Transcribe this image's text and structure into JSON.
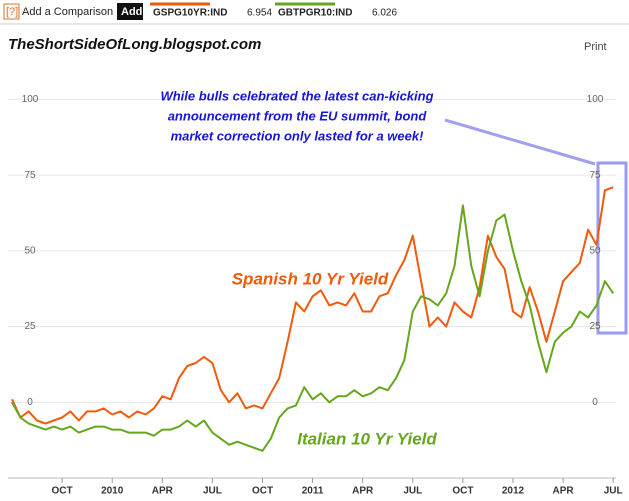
{
  "toolbar": {
    "help": "[?]",
    "compare": "Add a Comparison",
    "add": "Add"
  },
  "print": "Print",
  "chart_data": {
    "type": "line",
    "watermark": "TheShortSideOfLong.blogspot.com",
    "annotation": [
      "While bulls celebrated the latest can-kicking",
      "announcement from the EU summit, bond",
      "market correction only lasted for a week!"
    ],
    "categories": [
      null,
      null,
      null,
      null,
      null,
      null,
      "OCT",
      null,
      null,
      null,
      null,
      null,
      "2010",
      null,
      null,
      null,
      null,
      null,
      "APR",
      null,
      null,
      null,
      null,
      null,
      "JUL",
      null,
      null,
      null,
      null,
      null,
      "OCT",
      null,
      null,
      null,
      null,
      null,
      "2011",
      null,
      null,
      null,
      null,
      null,
      "APR",
      null,
      null,
      null,
      null,
      null,
      "JUL",
      null,
      null,
      null,
      null,
      null,
      "OCT",
      null,
      null,
      null,
      null,
      null,
      "2012",
      null,
      null,
      null,
      null,
      null,
      "APR",
      null,
      null,
      null,
      null,
      null,
      "JUL"
    ],
    "series": [
      {
        "name": "GSPG10YR:IND",
        "legend_value": "6.954",
        "label": "Spanish 10 Yr Yield",
        "color": "#f05a0a",
        "values": [
          1,
          -5,
          -3,
          -6,
          -7,
          -6,
          -5,
          -3,
          -6,
          -3,
          -3,
          -2,
          -4,
          -3,
          -5,
          -3,
          -4,
          -2,
          2,
          1,
          8,
          12,
          13,
          15,
          13,
          4,
          0,
          3,
          -2,
          -1,
          -2,
          3,
          8,
          20,
          33,
          30,
          35,
          37,
          32,
          33,
          32,
          36,
          30,
          30,
          35,
          36,
          42,
          47,
          55,
          40,
          25,
          28,
          25,
          33,
          30,
          28,
          38,
          55,
          48,
          44,
          30,
          28,
          38,
          30,
          20,
          30,
          40,
          43,
          46,
          57,
          52,
          70,
          71
        ]
      },
      {
        "name": "GBTPGR10:IND",
        "legend_value": "6.026",
        "label": "Italian 10 Yr Yield",
        "color": "#66a61e",
        "values": [
          0,
          -5,
          -7,
          -8,
          -9,
          -8,
          -9,
          -8,
          -10,
          -9,
          -8,
          -8,
          -9,
          -9,
          -10,
          -10,
          -10,
          -11,
          -9,
          -9,
          -8,
          -6,
          -8,
          -6,
          -10,
          -12,
          -14,
          -13,
          -14,
          -15,
          -16,
          -12,
          -5,
          -2,
          -1,
          5,
          1,
          3,
          0,
          2,
          2,
          4,
          2,
          3,
          5,
          4,
          8,
          14,
          30,
          35,
          34,
          32,
          36,
          45,
          65,
          45,
          35,
          50,
          60,
          62,
          50,
          40,
          32,
          20,
          10,
          20,
          23,
          25,
          30,
          28,
          32,
          40,
          36
        ]
      }
    ],
    "ylim": [
      -22,
      113
    ],
    "yticks": [
      0,
      25,
      50,
      75,
      100
    ],
    "grid": true
  }
}
